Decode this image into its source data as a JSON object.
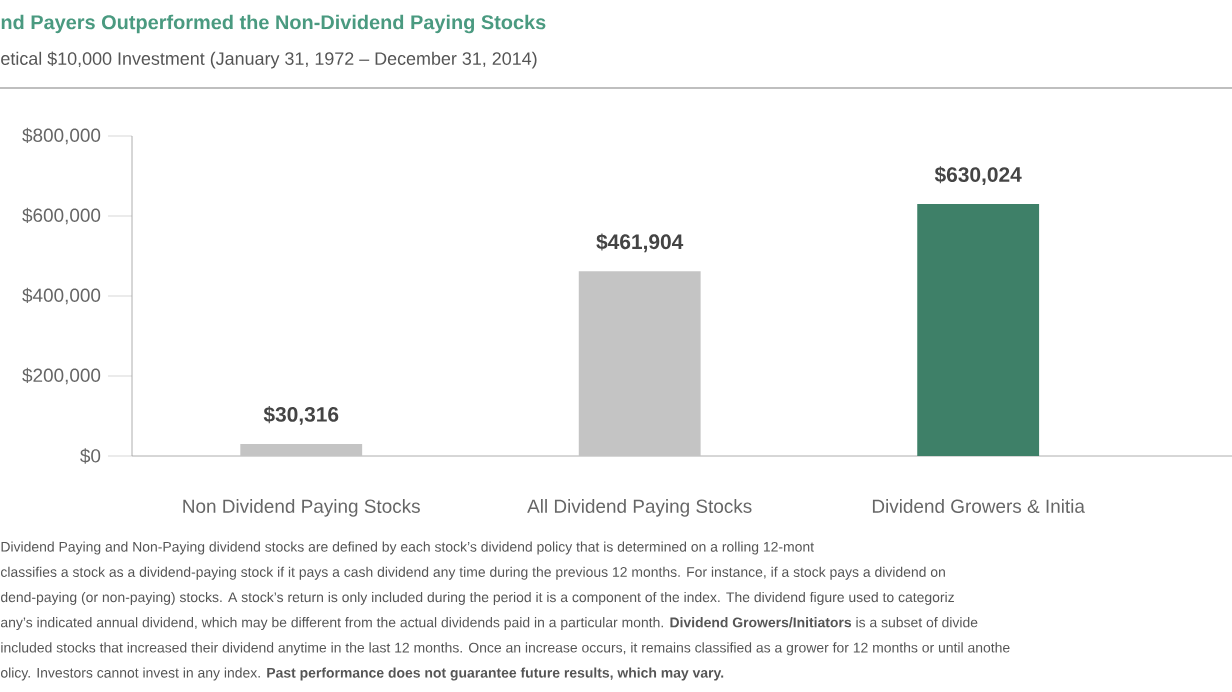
{
  "chart_data": {
    "type": "bar",
    "title": "nd Payers Outperformed the Non-Dividend Paying Stocks",
    "subtitle": "etical $10,000 Investment (January 31, 1972 – December 31, 2014)",
    "categories": [
      "Non Dividend Paying Stocks",
      "All Dividend Paying Stocks",
      "Dividend Growers & Initia"
    ],
    "values": [
      30316,
      461904,
      630024
    ],
    "value_labels": [
      "$30,316",
      "$461,904",
      "$630,024"
    ],
    "colors": [
      "#c4c4c4",
      "#c4c4c4",
      "#3e8068"
    ],
    "grid": false,
    "ylim": [
      0,
      800000
    ],
    "yticks": [
      {
        "value": 0,
        "label": "$0"
      },
      {
        "value": 200000,
        "label": "$200,000"
      },
      {
        "value": 400000,
        "label": "$400,000"
      },
      {
        "value": 600000,
        "label": "$600,000"
      },
      {
        "value": 800000,
        "label": "$800,000"
      }
    ],
    "annotations": [
      "Dividend Paying and Non-Paying dividend stocks are defined by each stock’s dividend policy that is determined on a rolling 12-mont",
      "classifies a stock as a dividend-paying stock if it pays a cash dividend any time during the previous 12 months. For instance, if a stock pays a dividend on",
      "dend-paying (or non-paying) stocks. A stock’s return is only included during the period it is a component of the index. The dividend figure used to categoriz",
      "any’s indicated annual dividend, which may be different from the actual dividends paid in a particular month. **Dividend Growers/Initiators** is a subset of divide",
      "included stocks that increased their dividend anytime in the last 12 months. Once an increase occurs, it remains classified as a grower for 12 months or until anothe",
      "olicy. Investors cannot invest in any index. **Past performance does not guarantee future results, which may vary.**"
    ]
  }
}
